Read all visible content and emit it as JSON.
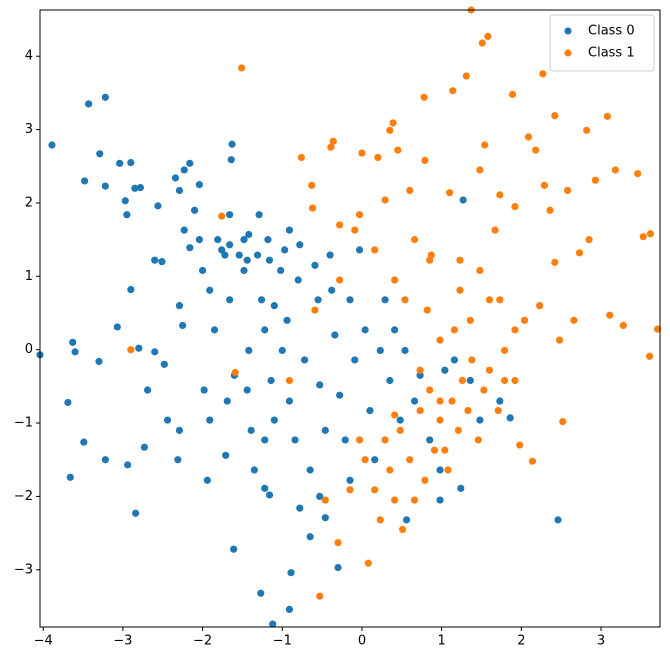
{
  "chart_data": {
    "type": "scatter",
    "xlim": [
      -4.04,
      3.74
    ],
    "ylim": [
      -3.78,
      4.63
    ],
    "xticks": [
      {
        "value": -4,
        "label": "−4"
      },
      {
        "value": -3,
        "label": "−3"
      },
      {
        "value": -2,
        "label": "−2"
      },
      {
        "value": -1,
        "label": "−1"
      },
      0,
      1,
      2,
      3
    ],
    "yticks": [
      {
        "value": -3,
        "label": "−3"
      },
      {
        "value": -2,
        "label": "−2"
      },
      {
        "value": -1,
        "label": "−1"
      },
      0,
      1,
      2,
      3,
      4
    ],
    "legend": "upper right",
    "series": [
      {
        "name": "Class 0",
        "color": "#1f77b4",
        "x": [
          -4.04,
          -3.89,
          -3.63,
          -3.6,
          -3.69,
          -3.66,
          -3.49,
          -3.48,
          -3.43,
          -3.22,
          -3.29,
          -3.22,
          -3.3,
          -3.22,
          -3.07,
          -3.04,
          -2.9,
          -2.97,
          -2.95,
          -2.85,
          -2.78,
          -2.9,
          -2.94,
          -2.84,
          -2.8,
          -2.69,
          -2.73,
          -2.6,
          -2.56,
          -2.6,
          -2.51,
          -2.48,
          -2.44,
          -2.34,
          -2.29,
          -2.23,
          -2.16,
          -2.23,
          -2.16,
          -2.29,
          -2.25,
          -2.29,
          -2.31,
          -2.1,
          -2.04,
          -2.04,
          -2.0,
          -1.91,
          -1.98,
          -1.91,
          -1.94,
          -1.85,
          -1.81,
          -1.76,
          -1.72,
          -1.66,
          -1.63,
          -1.64,
          -1.66,
          -1.66,
          -1.69,
          -1.71,
          -1.61,
          -1.6,
          -1.54,
          -1.48,
          -1.48,
          -1.44,
          -1.42,
          -1.44,
          -1.39,
          -1.35,
          -1.31,
          -1.29,
          -1.26,
          -1.22,
          -1.22,
          -1.22,
          -1.18,
          -1.16,
          -1.14,
          -1.1,
          -1.1,
          -1.16,
          -1.27,
          -1.12,
          -1.02,
          -1.0,
          -0.97,
          -0.94,
          -0.91,
          -0.89,
          -0.91,
          -0.84,
          -0.8,
          -0.78,
          -0.78,
          -0.72,
          -0.65,
          -0.65,
          -0.59,
          -0.55,
          -0.53,
          -0.53,
          -0.46,
          -0.46,
          -0.4,
          -0.38,
          -0.34,
          -0.3,
          -0.28,
          -0.21,
          -0.15,
          -0.09,
          -0.03,
          0.04,
          0.1,
          0.16,
          0.23,
          0.29,
          0.35,
          0.41,
          0.48,
          0.54,
          0.56,
          0.66,
          0.73,
          0.85,
          0.98,
          1.04,
          1.16,
          1.24,
          1.27,
          1.36,
          1.48,
          1.73,
          1.86,
          2.46,
          0.98,
          -0.15,
          -0.91,
          -1.42
        ],
        "y": [
          -0.07,
          2.79,
          0.1,
          -0.03,
          -0.72,
          -1.74,
          -1.26,
          2.3,
          3.35,
          3.44,
          2.67,
          2.23,
          -0.16,
          -1.5,
          0.31,
          2.54,
          2.55,
          2.03,
          1.84,
          2.2,
          2.21,
          0.82,
          -1.57,
          -2.23,
          0.02,
          -0.55,
          -1.33,
          -0.03,
          1.96,
          1.22,
          1.2,
          -0.2,
          -0.96,
          2.34,
          2.17,
          2.45,
          2.54,
          1.63,
          1.39,
          0.6,
          0.33,
          -1.1,
          -1.5,
          1.9,
          2.25,
          1.5,
          1.08,
          0.81,
          -0.55,
          -0.96,
          -1.78,
          0.27,
          1.5,
          1.36,
          1.29,
          1.43,
          2.8,
          2.59,
          1.84,
          0.68,
          -0.7,
          -1.44,
          -2.72,
          -0.35,
          1.29,
          1.08,
          1.5,
          1.22,
          -0.01,
          -0.55,
          -1.1,
          -1.64,
          1.29,
          1.84,
          0.68,
          0.27,
          -1.23,
          -1.89,
          1.5,
          1.22,
          -0.42,
          -0.96,
          0.6,
          -1.98,
          -3.32,
          -3.74,
          1.08,
          -0.01,
          1.36,
          0.4,
          -0.7,
          -3.04,
          -3.54,
          -1.23,
          0.95,
          1.43,
          -2.16,
          -0.14,
          -1.64,
          -2.55,
          1.15,
          0.68,
          -0.48,
          -2.0,
          -1.1,
          -2.29,
          1.29,
          0.81,
          0.2,
          -2.97,
          -0.62,
          -1.23,
          0.68,
          -0.14,
          1.36,
          0.27,
          -0.83,
          -1.5,
          -0.01,
          0.68,
          -0.42,
          0.27,
          -0.96,
          -0.01,
          -2.32,
          -0.7,
          -0.35,
          -1.23,
          -2.05,
          -0.28,
          -0.14,
          -1.89,
          2.04,
          -0.42,
          -0.96,
          -0.7,
          -0.93,
          -2.32,
          -1.64,
          -1.78,
          1.63,
          1.57
        ]
      },
      {
        "name": "Class 1",
        "color": "#ff7f0e",
        "x": [
          -1.51,
          -1.76,
          -1.59,
          -2.9,
          -0.76,
          -0.63,
          -0.62,
          -0.53,
          -0.39,
          -0.36,
          -0.3,
          -0.28,
          -0.03,
          0.0,
          0.08,
          0.16,
          0.2,
          0.29,
          0.35,
          0.39,
          0.41,
          0.45,
          0.51,
          0.6,
          0.66,
          0.78,
          0.79,
          0.82,
          0.87,
          0.98,
          1.04,
          1.1,
          1.14,
          1.16,
          1.23,
          1.31,
          1.37,
          1.48,
          1.51,
          1.58,
          1.54,
          1.6,
          1.67,
          1.73,
          1.79,
          1.92,
          1.89,
          1.92,
          1.98,
          2.04,
          2.09,
          2.14,
          2.18,
          2.23,
          2.27,
          2.29,
          2.36,
          2.42,
          2.42,
          2.48,
          2.52,
          2.58,
          2.66,
          2.73,
          2.82,
          2.85,
          2.93,
          3.08,
          3.11,
          3.18,
          3.28,
          3.46,
          3.53,
          3.61,
          3.62,
          3.71,
          0.48,
          0.6,
          0.73,
          0.79,
          0.85,
          0.91,
          0.98,
          1.08,
          1.13,
          1.21,
          1.26,
          1.33,
          1.38,
          1.46,
          1.53,
          1.6,
          1.71,
          1.79,
          0.35,
          0.41,
          0.23,
          0.29,
          0.16,
          -0.03,
          -0.15,
          0.04,
          0.66,
          0.73,
          0.54,
          0.98,
          1.36,
          1.73,
          1.92,
          0.41,
          -0.09,
          -0.28,
          -0.59,
          -0.91,
          -0.46,
          0.85,
          1.23,
          1.48
        ],
        "y": [
          3.84,
          1.82,
          -0.31,
          0.0,
          2.62,
          2.24,
          1.93,
          -3.36,
          2.76,
          2.84,
          -2.63,
          1.7,
          1.84,
          2.68,
          -2.91,
          1.36,
          2.62,
          2.04,
          2.99,
          3.09,
          0.95,
          2.72,
          -2.45,
          2.17,
          1.5,
          3.44,
          2.58,
          0.54,
          1.29,
          -0.7,
          -1.37,
          2.14,
          3.53,
          0.27,
          1.22,
          3.73,
          4.63,
          2.45,
          4.18,
          4.27,
          2.79,
          0.68,
          1.63,
          2.11,
          -0.42,
          -0.42,
          3.48,
          1.95,
          -1.3,
          0.4,
          2.9,
          -1.52,
          2.72,
          0.6,
          3.76,
          2.24,
          1.9,
          3.19,
          1.19,
          0.13,
          -0.98,
          2.17,
          0.4,
          1.32,
          2.99,
          1.5,
          2.31,
          3.18,
          0.47,
          2.45,
          0.33,
          2.4,
          1.54,
          -0.09,
          1.58,
          0.28,
          -1.1,
          -1.5,
          -0.83,
          -1.78,
          -0.55,
          -1.37,
          -0.96,
          -1.64,
          -0.7,
          -1.1,
          -0.42,
          -0.83,
          -0.14,
          -1.23,
          -0.55,
          -0.28,
          -0.83,
          -0.01,
          -1.64,
          -2.05,
          -2.32,
          -1.23,
          -1.91,
          -1.23,
          -1.91,
          -1.5,
          -2.05,
          -0.28,
          0.68,
          0.13,
          0.4,
          0.68,
          0.27,
          -0.89,
          1.63,
          0.95,
          0.54,
          -0.42,
          -2.05,
          1.22,
          0.81,
          1.08
        ]
      }
    ]
  }
}
